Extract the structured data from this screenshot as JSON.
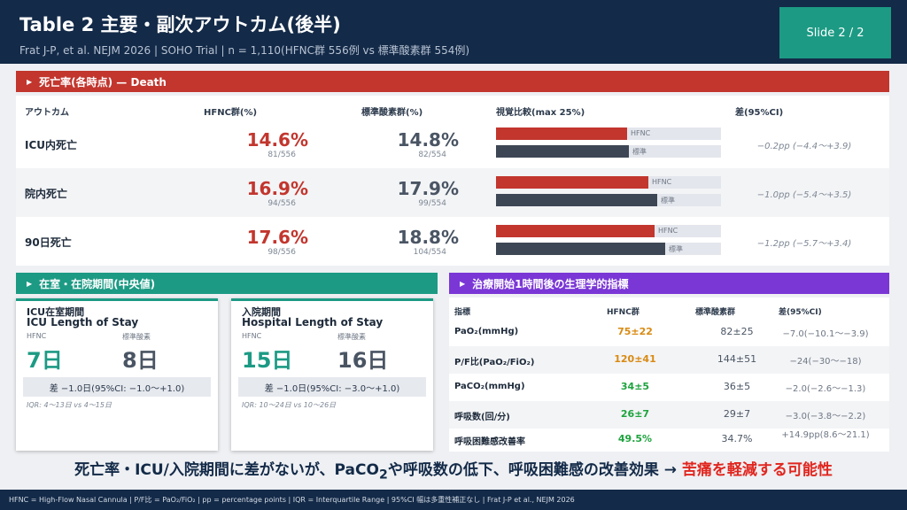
{
  "header": {
    "title": "Table 2  主要・副次アウトカム(後半)",
    "subtitle": "Frat J-P, et al. NEJM 2026  |  SOHO Trial  |  n = 1,110(HFNC群 556例 vs 標準酸素群 554例)",
    "slide_label": "Slide 2 / 2"
  },
  "death": {
    "section_title": "死亡率(各時点) — Death",
    "headers": {
      "outcome": "アウトカム",
      "hfnc": "HFNC群(%)",
      "std": "標準酸素群(%)",
      "visual": "視覚比較(max 25%)",
      "diff": "差(95%CI)"
    },
    "bar_label_hfnc": "HFNC",
    "bar_label_std": "標準",
    "scale_max": 25,
    "rows": [
      {
        "label": "ICU内死亡",
        "hfnc_pct": "14.6%",
        "hfnc_frac": "81/556",
        "std_pct": "14.8%",
        "std_frac": "82/554",
        "hfnc_value": 14.6,
        "std_value": 14.8,
        "diff": "−0.2pp (−4.4〜+3.9)"
      },
      {
        "label": "院内死亡",
        "hfnc_pct": "16.9%",
        "hfnc_frac": "94/556",
        "std_pct": "17.9%",
        "std_frac": "99/554",
        "hfnc_value": 16.9,
        "std_value": 17.9,
        "diff": "−1.0pp (−5.4〜+3.5)"
      },
      {
        "label": "90日死亡",
        "hfnc_pct": "17.6%",
        "hfnc_frac": "98/556",
        "std_pct": "18.8%",
        "std_frac": "104/554",
        "hfnc_value": 17.6,
        "std_value": 18.8,
        "diff": "−1.2pp (−5.7〜+3.4)"
      }
    ]
  },
  "los": {
    "section_title": "在室・在院期間(中央値)",
    "cards": [
      {
        "title1": "ICU在室期間",
        "title2": "ICU Length of Stay",
        "label_a": "HFNC",
        "label_b": "標準酸素",
        "value_a": "7日",
        "value_b": "8日",
        "diff": "差 −1.0日(95%CI: −1.0〜+1.0)",
        "iqr": "IQR: 4〜13日 vs 4〜15日"
      },
      {
        "title1": "入院期間",
        "title2": "Hospital Length of Stay",
        "label_a": "HFNC",
        "label_b": "標準酸素",
        "value_a": "15日",
        "value_b": "16日",
        "diff": "差 −1.0日(95%CI: −3.0〜+1.0)",
        "iqr": "IQR: 10〜24日 vs 10〜26日"
      }
    ]
  },
  "physio": {
    "section_title": "治療開始1時間後の生理学的指標",
    "headers": {
      "indicator": "指標",
      "hfnc": "HFNC群",
      "std": "標準酸素群",
      "diff": "差(95%CI)"
    },
    "rows": [
      {
        "label": "PaO₂(mmHg)",
        "hfnc": "75±22",
        "std": "82±25",
        "diff": "−7.0(−10.1〜−3.9)"
      },
      {
        "label": "P/F比(PaO₂/FiO₂)",
        "hfnc": "120±41",
        "std": "144±51",
        "diff": "−24(−30〜−18)"
      },
      {
        "label": "PaCO₂(mmHg)",
        "hfnc": "34±5",
        "std": "36±5",
        "diff": "−2.0(−2.6〜−1.3)"
      },
      {
        "label": "呼吸数(回/分)",
        "hfnc": "26±7",
        "std": "29±7",
        "diff": "−3.0(−3.8〜−2.2)"
      },
      {
        "label": "呼吸困難感改善率",
        "hfnc": "49.5%",
        "std": "34.7%",
        "diff": "+14.9pp(8.6〜21.1)"
      }
    ]
  },
  "conclusion": {
    "text_1": "死亡率・ICU/入院期間に差がないが、PaCO",
    "sub": "2",
    "text_2": "や呼吸数の低下、呼吸困難感の改善効果 → ",
    "emphasis": "苦痛を軽減する可能性"
  },
  "footer": {
    "text": "HFNC = High-Flow Nasal Cannula  |  P/F比 = PaO₂/FiO₂  |  pp = percentage points  |  IQR = Interquartile Range  |  95%CI 幅は多重性補正なし  |  Frat J-P et al., NEJM 2026"
  },
  "colors": {
    "navy": "#132a48",
    "red": "#c2362e",
    "teal": "#1c9a84",
    "purple": "#7a37d6",
    "orange": "#d98a12",
    "green": "#1ea33e"
  }
}
